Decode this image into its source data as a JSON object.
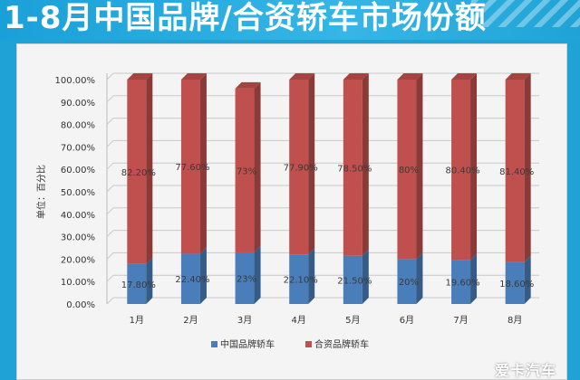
{
  "page": {
    "title": "1-8月中国品牌/合资轿车市场份额",
    "watermark": "爱卡汽车"
  },
  "chart_data": {
    "type": "bar",
    "stacked": true,
    "title": "1-8月中国品牌/合资轿车市场份额",
    "xlabel": "",
    "ylabel": "单位：百分比",
    "ylim": [
      0,
      100
    ],
    "ytick_labels": [
      "0.00%",
      "10.00%",
      "20.00%",
      "30.00%",
      "40.00%",
      "50.00%",
      "60.00%",
      "70.00%",
      "80.00%",
      "90.00%",
      "100.00%"
    ],
    "categories": [
      "1月",
      "2月",
      "3月",
      "4月",
      "5月",
      "6月",
      "7月",
      "8月"
    ],
    "series": [
      {
        "name": "中国品牌轿车",
        "color": "#4a7ebb",
        "values": [
          17.8,
          22.4,
          23,
          22.1,
          21.5,
          20,
          19.6,
          18.6
        ],
        "labels": [
          "17.80%",
          "22.40%",
          "23%",
          "22.10%",
          "21.50%",
          "20%",
          "19.60%",
          "18.60%"
        ]
      },
      {
        "name": "合资品牌轿车",
        "color": "#c0504d",
        "values": [
          82.2,
          77.6,
          73,
          77.9,
          78.5,
          80,
          80.4,
          81.4
        ],
        "labels": [
          "82.20%",
          "77.60%",
          "73%",
          "77.90%",
          "78.50%",
          "80%",
          "80.40%",
          "81.40%"
        ]
      }
    ],
    "grid": true,
    "legend_position": "bottom"
  }
}
